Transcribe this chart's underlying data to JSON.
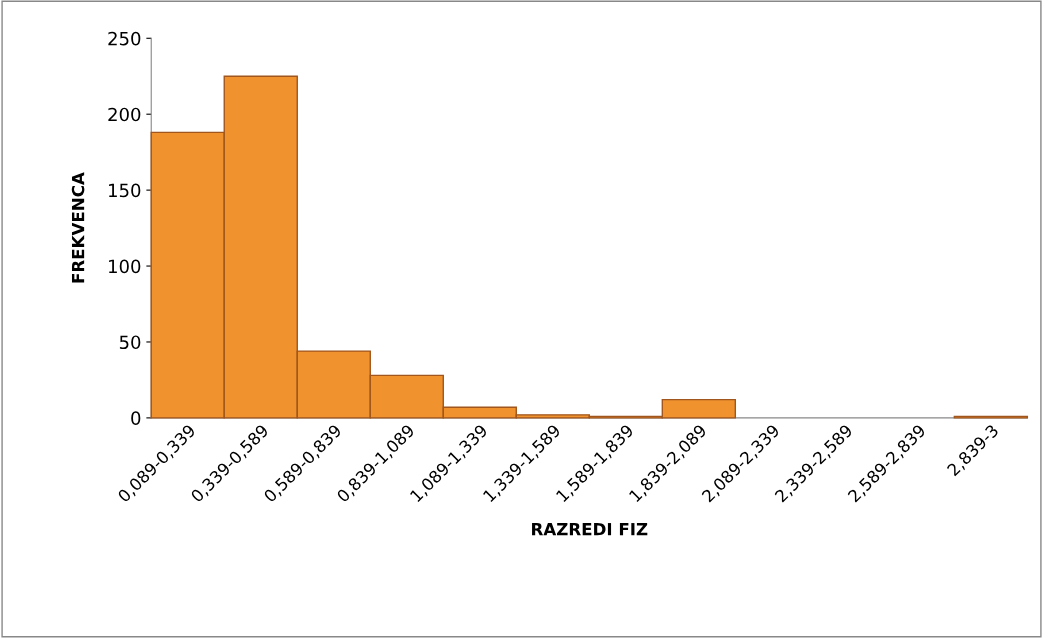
{
  "chart_data": {
    "type": "bar",
    "xlabel": "RAZREDI FIZ",
    "ylabel": "FREKVENCA",
    "categories": [
      "0,089-0,339",
      "0,339-0,589",
      "0,589-0,839",
      "0,839-1,089",
      "1,089-1,339",
      "1,339-1,589",
      "1,589-1,839",
      "1,839-2,089",
      "2,089-2,339",
      "2,339-2,589",
      "2,589-2,839",
      "2,839-3"
    ],
    "values": [
      188,
      225,
      44,
      28,
      7,
      2,
      1,
      12,
      0,
      0,
      0,
      1
    ],
    "color": "#f0922e",
    "ylim": [
      0,
      250
    ],
    "yticks": [
      0,
      50,
      100,
      150,
      200,
      250
    ],
    "grid": false
  }
}
